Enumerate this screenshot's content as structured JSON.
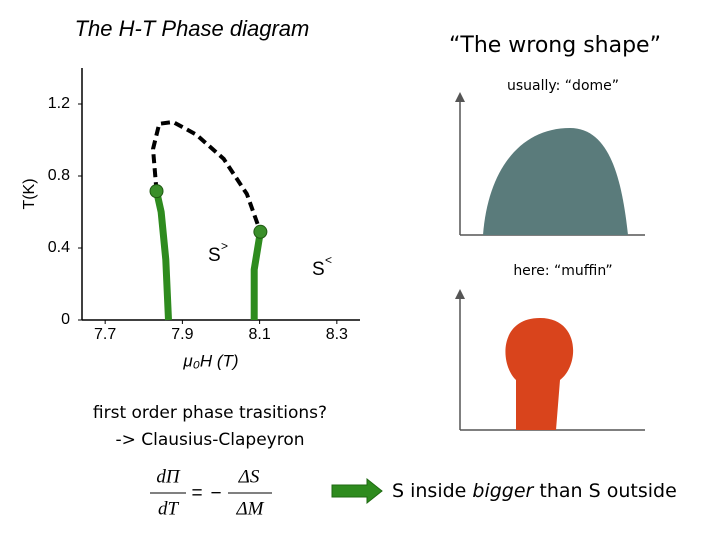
{
  "slide": {
    "title": "The H-T Phase diagram",
    "right_title": "“The wrong shape”",
    "dome_label": "usually: “dome”",
    "muffin_label": "here: “muffin”",
    "question": "first order phase trasitions?",
    "method": "-> Clausius-Clapeyron",
    "formula": {
      "num_left": "dΠ",
      "den_left": "dT",
      "equals": "=",
      "minus": "−",
      "num_right": "ΔS",
      "den_right": "ΔM"
    },
    "conclusion": {
      "before": "S inside ",
      "emphasis": "bigger",
      "after": " than S outside"
    }
  },
  "chart_data": {
    "type": "line",
    "xlabel": "μ₀H (T)",
    "ylabel": "T(K)",
    "xlim": [
      7.64,
      8.36
    ],
    "ylim": [
      0,
      1.4
    ],
    "xticks": [
      7.7,
      7.9,
      8.1,
      8.3
    ],
    "yticks": [
      0,
      0.4,
      0.8,
      1.2
    ],
    "annotations": [
      {
        "base": "S",
        "sup": ">"
      },
      {
        "base": "S",
        "sup": "<"
      }
    ],
    "series": [
      {
        "color": "#2e8b1e",
        "x": [
          7.864,
          7.857,
          7.845,
          7.833
        ],
        "values": [
          0,
          0.336,
          0.6,
          0.716
        ]
      },
      {
        "color": "#000000",
        "dash": true,
        "x": [
          7.833,
          7.824,
          7.84,
          7.876,
          7.936,
          8.007,
          8.067,
          8.102
        ],
        "values": [
          0.716,
          0.95,
          1.09,
          1.1,
          1.03,
          0.895,
          0.7,
          0.49
        ]
      },
      {
        "color": "#2e8b1e",
        "x": [
          8.102,
          8.086,
          8.086
        ],
        "values": [
          0.49,
          0.28,
          0
        ]
      },
      {
        "color": "#3a8f2a",
        "markers": true,
        "x": [
          7.833,
          8.102
        ],
        "values": [
          0.716,
          0.49
        ]
      }
    ]
  }
}
